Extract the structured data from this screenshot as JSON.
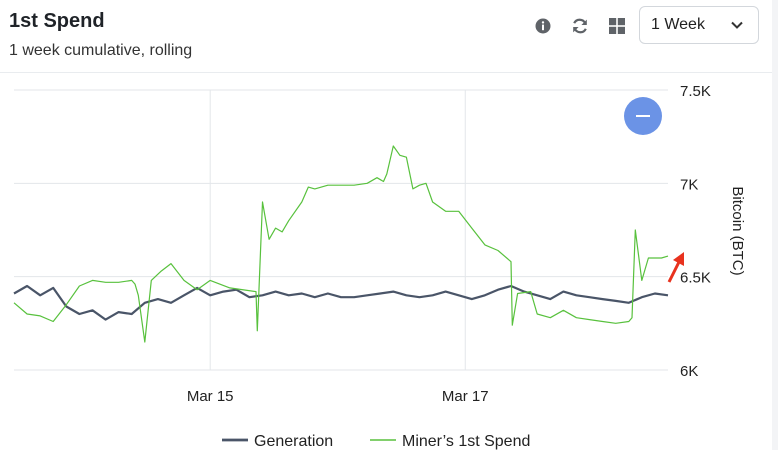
{
  "header": {
    "title": "1st Spend",
    "subtitle": "1 week cumulative, rolling",
    "icons": [
      "info-icon",
      "refresh-icon",
      "grid-icon"
    ],
    "range_select": {
      "value": "1 Week",
      "icon": "chevron-down-icon"
    }
  },
  "zoom_button": {
    "icon": "minus-icon"
  },
  "colors": {
    "generation": "#4a5568",
    "spend": "#58c13d",
    "zoom": "#6b93e6",
    "annotation_arrow": "#e8321e"
  },
  "chart_data": {
    "type": "line",
    "title": "",
    "xlabel": "",
    "ylabel": "Bitcoin (BTC)",
    "ylim": [
      6000,
      7500
    ],
    "xlim": [
      0,
      1
    ],
    "y_ticks": [
      7500,
      7000,
      6500,
      6000
    ],
    "y_tick_labels": [
      "7.5K",
      "7K",
      "6.5K",
      "6K"
    ],
    "x_ticks": [
      0.3,
      0.69
    ],
    "x_tick_labels": [
      "Mar 15",
      "Mar 17"
    ],
    "legend": {
      "placement": "bottom",
      "entries": [
        "Generation",
        "Miner’s 1st Spend"
      ]
    },
    "grid": true,
    "series": [
      {
        "name": "Generation",
        "x": [
          0.0,
          0.02,
          0.04,
          0.06,
          0.08,
          0.1,
          0.12,
          0.14,
          0.16,
          0.18,
          0.2,
          0.22,
          0.24,
          0.26,
          0.28,
          0.3,
          0.32,
          0.34,
          0.36,
          0.38,
          0.4,
          0.42,
          0.44,
          0.46,
          0.48,
          0.5,
          0.52,
          0.54,
          0.56,
          0.58,
          0.6,
          0.62,
          0.64,
          0.66,
          0.68,
          0.7,
          0.72,
          0.74,
          0.76,
          0.78,
          0.8,
          0.82,
          0.84,
          0.86,
          0.88,
          0.9,
          0.92,
          0.94,
          0.96,
          0.98,
          1.0
        ],
        "y": [
          6410,
          6450,
          6400,
          6440,
          6340,
          6300,
          6320,
          6270,
          6310,
          6300,
          6360,
          6380,
          6360,
          6400,
          6440,
          6400,
          6420,
          6430,
          6390,
          6400,
          6420,
          6400,
          6410,
          6390,
          6410,
          6390,
          6390,
          6400,
          6410,
          6420,
          6400,
          6390,
          6400,
          6420,
          6400,
          6380,
          6400,
          6430,
          6450,
          6420,
          6400,
          6380,
          6420,
          6400,
          6390,
          6380,
          6370,
          6360,
          6390,
          6410,
          6400
        ]
      },
      {
        "name": "Miner’s 1st Spend",
        "x": [
          0.0,
          0.02,
          0.04,
          0.06,
          0.08,
          0.1,
          0.12,
          0.14,
          0.16,
          0.18,
          0.185,
          0.19,
          0.2,
          0.21,
          0.225,
          0.24,
          0.26,
          0.28,
          0.3,
          0.33,
          0.37,
          0.372,
          0.38,
          0.39,
          0.4,
          0.41,
          0.42,
          0.44,
          0.45,
          0.46,
          0.48,
          0.5,
          0.52,
          0.54,
          0.555,
          0.565,
          0.57,
          0.58,
          0.59,
          0.6,
          0.61,
          0.62,
          0.63,
          0.64,
          0.66,
          0.68,
          0.7,
          0.72,
          0.74,
          0.76,
          0.762,
          0.77,
          0.79,
          0.8,
          0.82,
          0.84,
          0.86,
          0.88,
          0.9,
          0.92,
          0.94,
          0.945,
          0.95,
          0.96,
          0.97,
          0.99,
          1.0
        ],
        "y": [
          6360,
          6300,
          6290,
          6260,
          6350,
          6450,
          6480,
          6470,
          6470,
          6480,
          6460,
          6400,
          6150,
          6480,
          6530,
          6570,
          6480,
          6430,
          6480,
          6440,
          6420,
          6210,
          6900,
          6700,
          6760,
          6740,
          6800,
          6900,
          6980,
          6970,
          6990,
          6990,
          6990,
          7000,
          7030,
          7010,
          7050,
          7200,
          7150,
          7140,
          6970,
          6990,
          7000,
          6900,
          6850,
          6850,
          6760,
          6670,
          6640,
          6580,
          6240,
          6410,
          6420,
          6300,
          6280,
          6320,
          6280,
          6270,
          6260,
          6250,
          6260,
          6280,
          6750,
          6480,
          6600,
          6600,
          6610
        ]
      }
    ]
  }
}
